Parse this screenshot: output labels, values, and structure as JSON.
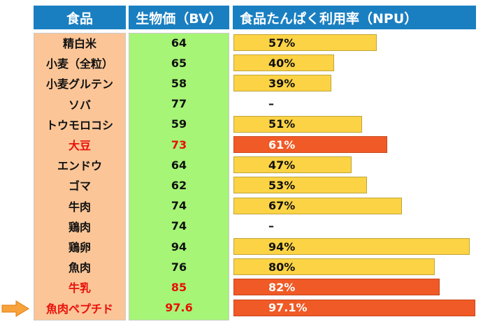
{
  "headers": {
    "food": "食品",
    "bv": "生物価（BV）",
    "npu": "食品たんぱく利用率（NPU）"
  },
  "colors": {
    "header_bg": "#1a7fc1",
    "food_col": "#fbc597",
    "bv_col": "#a6f576",
    "bar_normal": "#fcd345",
    "bar_highlight": "#f05a26",
    "highlight_text": "#e8100a"
  },
  "arrow_icon": "right-arrow-icon",
  "rows": [
    {
      "food": "精白米",
      "bv": "64",
      "npu": "57%",
      "highlight": false
    },
    {
      "food": "小麦（全粒）",
      "bv": "65",
      "npu": "40%",
      "highlight": false
    },
    {
      "food": "小麦グルテン",
      "bv": "58",
      "npu": "39%",
      "highlight": false
    },
    {
      "food": "ソバ",
      "bv": "77",
      "npu": "–",
      "highlight": false
    },
    {
      "food": "トウモロコシ",
      "bv": "59",
      "npu": "51%",
      "highlight": false
    },
    {
      "food": "大豆",
      "bv": "73",
      "npu": "61%",
      "highlight": true
    },
    {
      "food": "エンドウ",
      "bv": "64",
      "npu": "47%",
      "highlight": false
    },
    {
      "food": "ゴマ",
      "bv": "62",
      "npu": "53%",
      "highlight": false
    },
    {
      "food": "牛肉",
      "bv": "74",
      "npu": "67%",
      "highlight": false
    },
    {
      "food": "鶏肉",
      "bv": "74",
      "npu": "–",
      "highlight": false
    },
    {
      "food": "鶏卵",
      "bv": "94",
      "npu": "94%",
      "highlight": false
    },
    {
      "food": "魚肉",
      "bv": "76",
      "npu": "80%",
      "highlight": false
    },
    {
      "food": "牛乳",
      "bv": "85",
      "npu": "82%",
      "highlight": true
    },
    {
      "food": "魚肉ペプチド",
      "bv": "97.6",
      "npu": "97.1%",
      "highlight": true
    }
  ],
  "chart_data": {
    "type": "bar",
    "categories": [
      "精白米",
      "小麦（全粒）",
      "小麦グルテン",
      "ソバ",
      "トウモロコシ",
      "大豆",
      "エンドウ",
      "ゴマ",
      "牛肉",
      "鶏肉",
      "鶏卵",
      "魚肉",
      "牛乳",
      "魚肉ペプチド"
    ],
    "series": [
      {
        "name": "生物価（BV）",
        "values": [
          64,
          65,
          58,
          77,
          59,
          73,
          64,
          62,
          74,
          74,
          94,
          76,
          85,
          97.6
        ]
      },
      {
        "name": "食品たんぱく利用率（NPU）",
        "values": [
          57,
          40,
          39,
          null,
          51,
          61,
          47,
          53,
          67,
          null,
          94,
          80,
          82,
          97.1
        ]
      }
    ]
  }
}
